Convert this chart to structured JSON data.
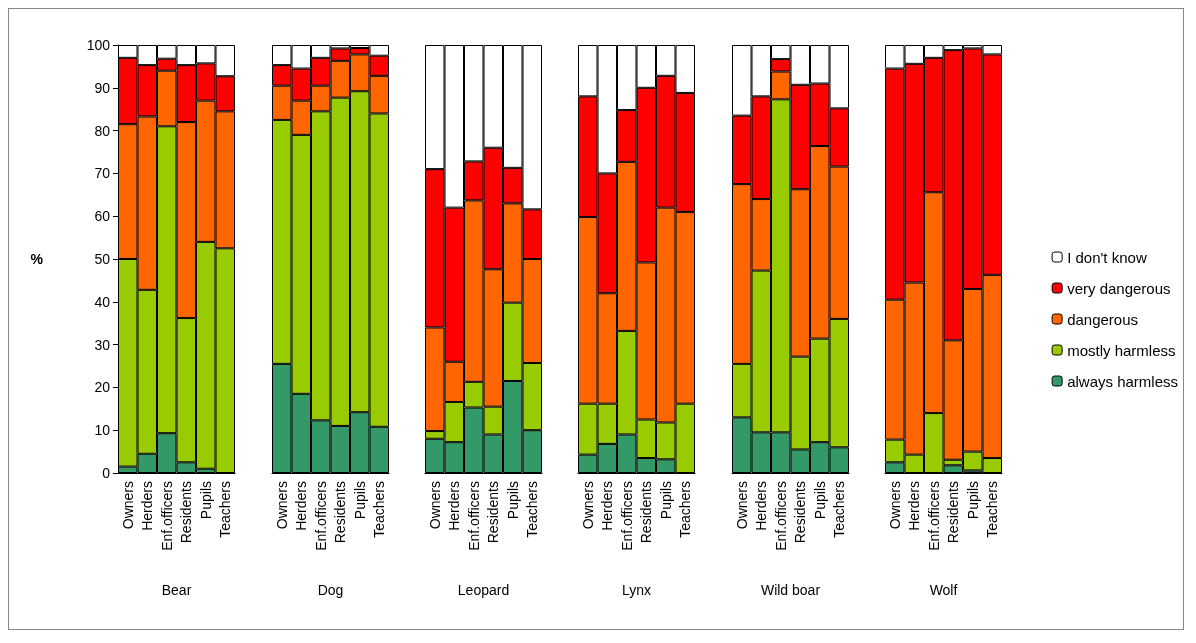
{
  "chart_data": [
    {
      "type": "bar",
      "stacked": true,
      "xlabel": "Bear",
      "ylabel": "%",
      "categories": [
        "Owners",
        "Herders",
        "Enf.officers",
        "Residents",
        "Pupils",
        "Teachers"
      ],
      "ylim": [
        0,
        100
      ],
      "yticks": [
        0,
        10,
        20,
        30,
        40,
        50,
        60,
        70,
        80,
        90,
        100
      ],
      "grid": false,
      "series": [
        {
          "color": "#339966",
          "values": [
            1.5,
            4.5,
            9.3,
            2.5,
            1,
            0
          ]
        },
        {
          "color": "#99cc00",
          "values": [
            48.5,
            38.3,
            71.7,
            33.7,
            53,
            52.5
          ]
        },
        {
          "color": "#ff6600",
          "values": [
            31.5,
            40.5,
            13,
            45.8,
            33,
            32
          ]
        },
        {
          "color": "#ff0000",
          "values": [
            15.5,
            12,
            2.8,
            13.3,
            8.7,
            8.2
          ]
        },
        {
          "color": "#ffffff",
          "values": [
            3,
            4.7,
            3.2,
            4.7,
            4.3,
            7.3
          ]
        }
      ]
    },
    {
      "type": "bar",
      "stacked": true,
      "xlabel": "Dog",
      "categories": [
        "Owners",
        "Herders",
        "Enf.officers",
        "Residents",
        "Pupils",
        "Teachers"
      ],
      "ylim": [
        0,
        100
      ],
      "tick_labels": "x",
      "grid": false,
      "series": [
        {
          "color": "#339966",
          "values": [
            25.5,
            18.5,
            12.3,
            11,
            14.2,
            10.8
          ]
        },
        {
          "color": "#99cc00",
          "values": [
            57,
            60.5,
            72.2,
            76.7,
            75,
            73.2
          ]
        },
        {
          "color": "#ff6600",
          "values": [
            8,
            8,
            6,
            8.6,
            8.6,
            8.8
          ]
        },
        {
          "color": "#ff0000",
          "values": [
            4.8,
            7.5,
            6.5,
            2.9,
            1.5,
            4.7
          ]
        },
        {
          "color": "#ffffff",
          "values": [
            4.7,
            5.5,
            3,
            0.8,
            0.7,
            2.5
          ]
        }
      ]
    },
    {
      "type": "bar",
      "stacked": true,
      "xlabel": "Leopard",
      "categories": [
        "Owners",
        "Herders",
        "Enf.officers",
        "Residents",
        "Pupils",
        "Teachers"
      ],
      "ylim": [
        0,
        100
      ],
      "tick_labels": "x",
      "grid": false,
      "series": [
        {
          "color": "#339966",
          "values": [
            8,
            7.2,
            15.3,
            9,
            21.5,
            10
          ]
        },
        {
          "color": "#99cc00",
          "values": [
            1.8,
            9.4,
            6,
            6.5,
            18.3,
            15.7
          ]
        },
        {
          "color": "#ff6600",
          "values": [
            24.2,
            9.4,
            42.4,
            32.1,
            23.2,
            24.3
          ]
        },
        {
          "color": "#ff0000",
          "values": [
            37,
            36,
            9.1,
            28.4,
            8.3,
            11.6
          ]
        },
        {
          "color": "#ffffff",
          "values": [
            29,
            38,
            27.2,
            24,
            28.7,
            38.4
          ]
        }
      ]
    },
    {
      "type": "bar",
      "stacked": true,
      "xlabel": "Lynx",
      "categories": [
        "Owners",
        "Herders",
        "Enf.officers",
        "Residents",
        "Pupils",
        "Teachers"
      ],
      "ylim": [
        0,
        100
      ],
      "tick_labels": "x",
      "grid": false,
      "series": [
        {
          "color": "#339966",
          "values": [
            4.3,
            6.8,
            9,
            3.5,
            3.2,
            0
          ]
        },
        {
          "color": "#99cc00",
          "values": [
            11.9,
            9.4,
            24.2,
            9,
            8.6,
            16.2
          ]
        },
        {
          "color": "#ff6600",
          "values": [
            43.6,
            25.8,
            39.5,
            36.7,
            50.2,
            44.8
          ]
        },
        {
          "color": "#ff0000",
          "values": [
            28.2,
            28,
            12.1,
            40.8,
            30.8,
            27.8
          ]
        },
        {
          "color": "#ffffff",
          "values": [
            12,
            30,
            15.2,
            10,
            7.2,
            11.2
          ]
        }
      ]
    },
    {
      "type": "bar",
      "stacked": true,
      "xlabel": "Wild boar",
      "categories": [
        "Owners",
        "Herders",
        "Enf.officers",
        "Residents",
        "Pupils",
        "Teachers"
      ],
      "ylim": [
        0,
        100
      ],
      "tick_labels": "x",
      "grid": false,
      "series": [
        {
          "color": "#339966",
          "values": [
            13,
            9.5,
            9.5,
            5.5,
            7.2,
            6
          ]
        },
        {
          "color": "#99cc00",
          "values": [
            12.5,
            37.8,
            77.8,
            21.7,
            24.2,
            30
          ]
        },
        {
          "color": "#ff6600",
          "values": [
            42,
            16.7,
            6.5,
            39.1,
            45,
            35.6
          ]
        },
        {
          "color": "#ff0000",
          "values": [
            16,
            24,
            2.9,
            24.4,
            14.6,
            13.6
          ]
        },
        {
          "color": "#ffffff",
          "values": [
            16.5,
            12,
            3.3,
            9.3,
            9,
            14.8
          ]
        }
      ]
    },
    {
      "type": "bar",
      "stacked": true,
      "xlabel": "Wolf",
      "categories": [
        "Owners",
        "Herders",
        "Enf.officers",
        "Residents",
        "Pupils",
        "Teachers"
      ],
      "ylim": [
        0,
        100
      ],
      "tick_labels": "x",
      "grid": false,
      "legend": "right",
      "series": [
        {
          "name": "always harmless",
          "color": "#339966",
          "values": [
            2.5,
            0,
            0,
            1.8,
            0.6,
            0
          ]
        },
        {
          "name": "mostly harmless",
          "color": "#99cc00",
          "values": [
            5.3,
            4.3,
            14,
            1.3,
            4.4,
            3.5
          ]
        },
        {
          "name": "dangerous",
          "color": "#ff6600",
          "values": [
            32.7,
            40.2,
            51.6,
            27.9,
            38,
            42.8
          ]
        },
        {
          "name": "very dangerous",
          "color": "#ff0000",
          "values": [
            54,
            51.1,
            31.4,
            67.8,
            56.2,
            51.5
          ]
        },
        {
          "name": "I don't know",
          "color": "#ffffff",
          "values": [
            5.5,
            4.4,
            3,
            1.2,
            0.8,
            2.2
          ]
        }
      ]
    }
  ]
}
